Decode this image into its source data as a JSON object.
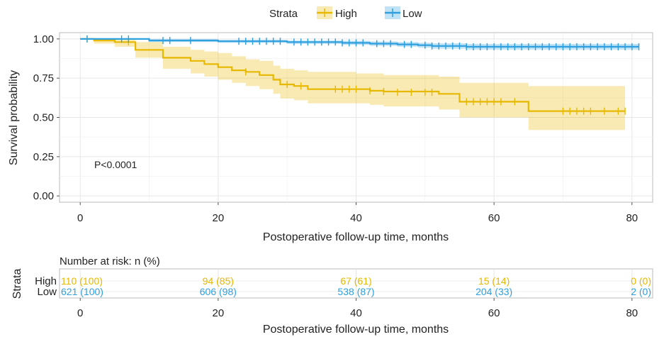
{
  "chart_data": {
    "type": "line",
    "legend": {
      "title": "Strata",
      "position": "top",
      "entries": [
        {
          "name": "High",
          "color": "#E7B800"
        },
        {
          "name": "Low",
          "color": "#2E9FDF"
        }
      ]
    },
    "xlabel": "Postoperative follow-up time, months",
    "ylabel": "Survival probability",
    "xlim": [
      -3,
      83
    ],
    "ylim": [
      -0.04,
      1.04
    ],
    "x_ticks": [
      0,
      20,
      40,
      60,
      80
    ],
    "y_ticks": [
      0.0,
      0.25,
      0.5,
      0.75,
      1.0
    ],
    "x_tick_labels": [
      "0",
      "20",
      "40",
      "60",
      "80"
    ],
    "y_tick_labels": [
      "0.00",
      "0.25",
      "0.50",
      "0.75",
      "1.00"
    ],
    "grid": true,
    "pvalue_annotation": "P<0.0001",
    "series": [
      {
        "name": "High",
        "color": "#E7B800",
        "step": [
          [
            0,
            1.0
          ],
          [
            2,
            0.99
          ],
          [
            5,
            0.98
          ],
          [
            8,
            0.93
          ],
          [
            12,
            0.88
          ],
          [
            16,
            0.86
          ],
          [
            18,
            0.84
          ],
          [
            20,
            0.82
          ],
          [
            22,
            0.8
          ],
          [
            24,
            0.79
          ],
          [
            26,
            0.77
          ],
          [
            28,
            0.74
          ],
          [
            29,
            0.71
          ],
          [
            31,
            0.7
          ],
          [
            33,
            0.68
          ],
          [
            40,
            0.68
          ],
          [
            42,
            0.67
          ],
          [
            44,
            0.665
          ],
          [
            52,
            0.65
          ],
          [
            55,
            0.6
          ],
          [
            62,
            0.6
          ],
          [
            65,
            0.54
          ],
          [
            79,
            0.54
          ]
        ],
        "ci_upper": [
          [
            0,
            1.0
          ],
          [
            2,
            1.0
          ],
          [
            5,
            1.0
          ],
          [
            8,
            0.98
          ],
          [
            12,
            0.95
          ],
          [
            16,
            0.93
          ],
          [
            18,
            0.92
          ],
          [
            20,
            0.91
          ],
          [
            22,
            0.89
          ],
          [
            24,
            0.87
          ],
          [
            26,
            0.86
          ],
          [
            28,
            0.83
          ],
          [
            29,
            0.81
          ],
          [
            31,
            0.8
          ],
          [
            33,
            0.79
          ],
          [
            40,
            0.78
          ],
          [
            42,
            0.78
          ],
          [
            44,
            0.77
          ],
          [
            52,
            0.76
          ],
          [
            55,
            0.72
          ],
          [
            62,
            0.72
          ],
          [
            65,
            0.7
          ],
          [
            79,
            0.7
          ]
        ],
        "ci_lower": [
          [
            0,
            1.0
          ],
          [
            2,
            0.97
          ],
          [
            5,
            0.95
          ],
          [
            8,
            0.88
          ],
          [
            12,
            0.81
          ],
          [
            16,
            0.78
          ],
          [
            18,
            0.76
          ],
          [
            20,
            0.74
          ],
          [
            22,
            0.72
          ],
          [
            24,
            0.7
          ],
          [
            26,
            0.68
          ],
          [
            28,
            0.65
          ],
          [
            29,
            0.62
          ],
          [
            31,
            0.61
          ],
          [
            33,
            0.59
          ],
          [
            40,
            0.59
          ],
          [
            42,
            0.58
          ],
          [
            44,
            0.57
          ],
          [
            52,
            0.55
          ],
          [
            55,
            0.5
          ],
          [
            62,
            0.5
          ],
          [
            65,
            0.42
          ],
          [
            79,
            0.42
          ]
        ],
        "censored": [
          [
            1,
            1.0
          ],
          [
            7,
            0.98
          ],
          [
            24,
            0.79
          ],
          [
            30,
            0.71
          ],
          [
            32,
            0.7
          ],
          [
            37,
            0.68
          ],
          [
            38,
            0.68
          ],
          [
            39,
            0.68
          ],
          [
            40,
            0.68
          ],
          [
            42,
            0.67
          ],
          [
            44,
            0.665
          ],
          [
            46,
            0.66
          ],
          [
            48,
            0.66
          ],
          [
            50,
            0.66
          ],
          [
            51,
            0.66
          ],
          [
            56,
            0.6
          ],
          [
            57,
            0.6
          ],
          [
            58,
            0.6
          ],
          [
            59,
            0.6
          ],
          [
            60,
            0.6
          ],
          [
            61,
            0.6
          ],
          [
            63,
            0.6
          ],
          [
            70,
            0.54
          ],
          [
            71,
            0.54
          ],
          [
            72,
            0.54
          ],
          [
            73,
            0.54
          ],
          [
            74,
            0.54
          ],
          [
            76,
            0.54
          ],
          [
            78,
            0.54
          ],
          [
            79,
            0.54
          ]
        ]
      },
      {
        "name": "Low",
        "color": "#2E9FDF",
        "step": [
          [
            0,
            1.0
          ],
          [
            10,
            0.99
          ],
          [
            20,
            0.985
          ],
          [
            30,
            0.98
          ],
          [
            38,
            0.975
          ],
          [
            42,
            0.97
          ],
          [
            46,
            0.965
          ],
          [
            49,
            0.96
          ],
          [
            51,
            0.955
          ],
          [
            56,
            0.95
          ],
          [
            81,
            0.95
          ]
        ],
        "ci_upper": [
          [
            0,
            1.0
          ],
          [
            10,
            1.0
          ],
          [
            20,
            0.995
          ],
          [
            30,
            0.99
          ],
          [
            38,
            0.988
          ],
          [
            42,
            0.984
          ],
          [
            46,
            0.98
          ],
          [
            49,
            0.976
          ],
          [
            51,
            0.972
          ],
          [
            56,
            0.968
          ],
          [
            81,
            0.968
          ]
        ],
        "ci_lower": [
          [
            0,
            1.0
          ],
          [
            10,
            0.98
          ],
          [
            20,
            0.975
          ],
          [
            30,
            0.968
          ],
          [
            38,
            0.962
          ],
          [
            42,
            0.956
          ],
          [
            46,
            0.95
          ],
          [
            49,
            0.944
          ],
          [
            51,
            0.938
          ],
          [
            56,
            0.932
          ],
          [
            81,
            0.932
          ]
        ],
        "censored": [
          [
            1,
            1.0
          ],
          [
            6,
            1.0
          ],
          [
            7,
            1.0
          ],
          [
            12,
            0.99
          ],
          [
            13,
            0.99
          ],
          [
            16,
            0.99
          ],
          [
            23,
            0.985
          ],
          [
            24,
            0.985
          ],
          [
            25,
            0.985
          ],
          [
            26,
            0.985
          ],
          [
            27,
            0.985
          ],
          [
            28,
            0.985
          ],
          [
            29,
            0.985
          ],
          [
            31,
            0.98
          ],
          [
            32,
            0.98
          ],
          [
            33,
            0.98
          ],
          [
            34,
            0.98
          ],
          [
            35,
            0.98
          ],
          [
            36,
            0.98
          ],
          [
            37,
            0.98
          ],
          [
            38,
            0.975
          ],
          [
            39,
            0.975
          ],
          [
            40,
            0.975
          ],
          [
            41,
            0.975
          ],
          [
            43,
            0.97
          ],
          [
            44,
            0.97
          ],
          [
            45,
            0.97
          ],
          [
            47,
            0.965
          ],
          [
            48,
            0.965
          ],
          [
            50,
            0.96
          ],
          [
            51,
            0.955
          ],
          [
            52,
            0.955
          ],
          [
            53,
            0.955
          ],
          [
            54,
            0.955
          ],
          [
            55,
            0.955
          ],
          [
            56,
            0.95
          ],
          [
            57,
            0.95
          ],
          [
            58,
            0.95
          ],
          [
            59,
            0.95
          ],
          [
            60,
            0.95
          ],
          [
            61,
            0.95
          ],
          [
            62,
            0.95
          ],
          [
            63,
            0.95
          ],
          [
            64,
            0.95
          ],
          [
            65,
            0.95
          ],
          [
            66,
            0.95
          ],
          [
            67,
            0.95
          ],
          [
            68,
            0.95
          ],
          [
            69,
            0.95
          ],
          [
            70,
            0.95
          ],
          [
            71,
            0.95
          ],
          [
            72,
            0.95
          ],
          [
            73,
            0.95
          ],
          [
            74,
            0.95
          ],
          [
            75,
            0.95
          ],
          [
            76,
            0.95
          ],
          [
            77,
            0.95
          ],
          [
            78,
            0.95
          ],
          [
            79,
            0.95
          ],
          [
            80,
            0.95
          ],
          [
            81,
            0.95
          ]
        ]
      }
    ],
    "risk_table": {
      "title": "Number at risk: n (%)",
      "ylabel": "Strata",
      "xlabel": "Postoperative follow-up time, months",
      "times": [
        0,
        20,
        40,
        60,
        80
      ],
      "rows": [
        {
          "name": "High",
          "color": "#E7B800",
          "values": [
            "110 (100)",
            "94 (85)",
            "67 (61)",
            "15 (14)",
            "0 (0)"
          ]
        },
        {
          "name": "Low",
          "color": "#2E9FDF",
          "values": [
            "621 (100)",
            "606 (98)",
            "538 (87)",
            "204 (33)",
            "2 (0)"
          ]
        }
      ]
    }
  }
}
